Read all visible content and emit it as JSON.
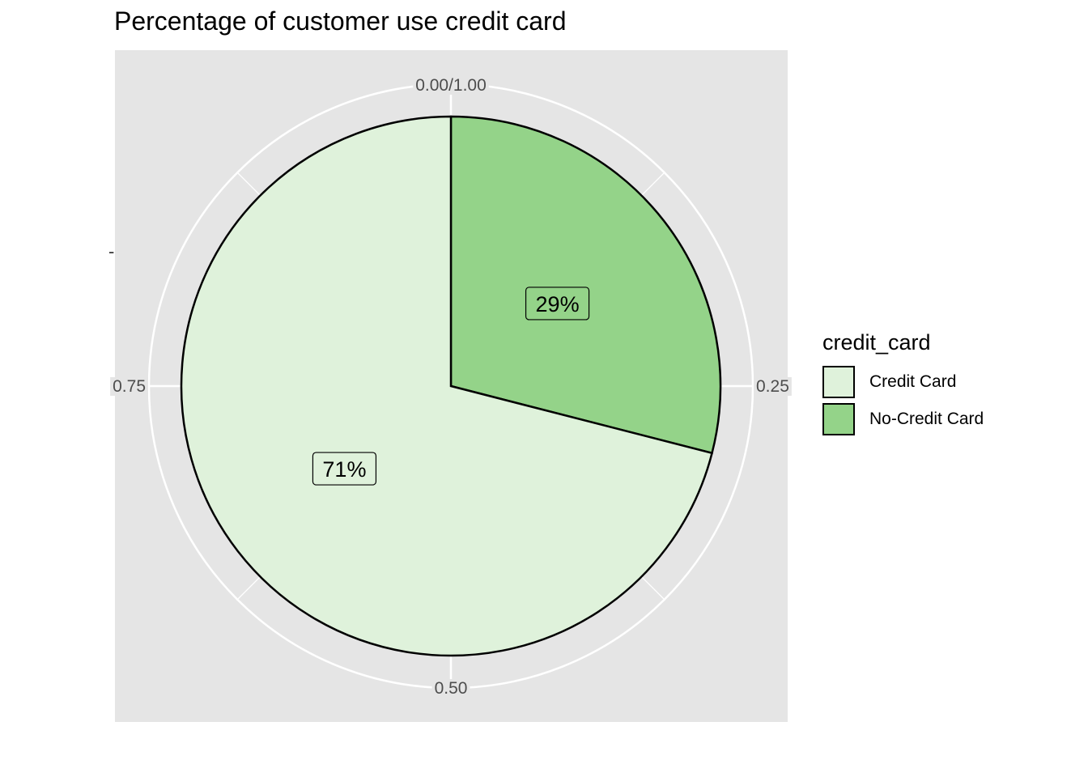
{
  "chart_data": {
    "type": "pie",
    "title": "Percentage of customer use credit card",
    "slices": [
      {
        "name": "Credit Card",
        "value": 0.71,
        "label": "71%",
        "color": "#dff2db"
      },
      {
        "name": "No-Credit Card",
        "value": 0.29,
        "label": "29%",
        "color": "#94d389"
      }
    ],
    "theta_ticks": [
      {
        "value": 0.0,
        "label": "0.00/1.00"
      },
      {
        "value": 0.25,
        "label": "0.25"
      },
      {
        "value": 0.5,
        "label": "0.50"
      },
      {
        "value": 0.75,
        "label": "0.75"
      }
    ],
    "legend": {
      "title": "credit_card",
      "placement": "right"
    },
    "y_tick_label": "-",
    "panel_background": "#e5e5e5",
    "grid": true
  }
}
